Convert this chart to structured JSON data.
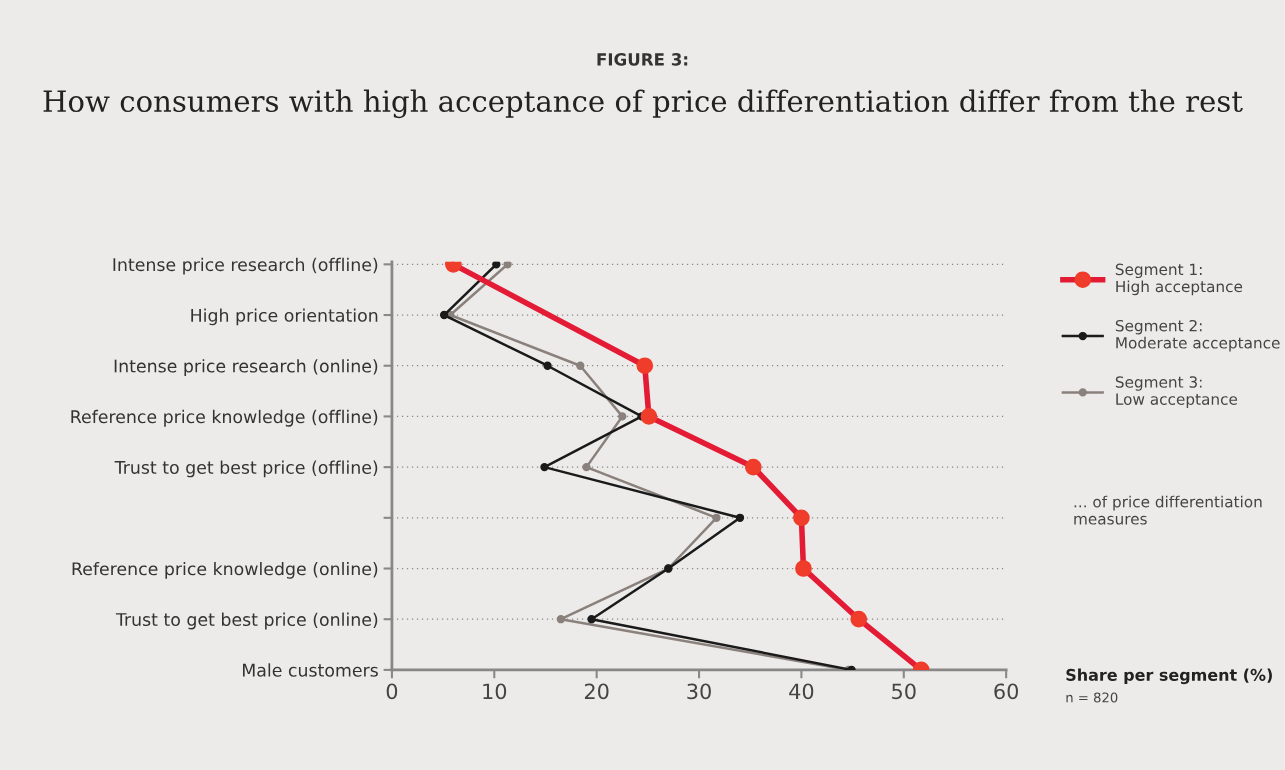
{
  "chart_data": {
    "type": "line",
    "orientation": "horizontal",
    "title": "FIGURE 3:",
    "subtitle": "How consumers with high acceptance of price differentiation differ from the rest",
    "categories": [
      "Intense price research (offline)",
      "High price orientation",
      "Intense price research (online)",
      "Reference price knowledge (offline)",
      "Trust to get best price (offline)",
      null,
      "Reference price knowledge (online)",
      "Trust to get best price (online)",
      "Male customers"
    ],
    "series": [
      {
        "name": "Segment 1:\nHigh acceptance",
        "color": "#e31b35",
        "values": [
          6,
          null,
          24.7,
          25.1,
          35.3,
          40.0,
          40.2,
          45.6,
          51.7
        ]
      },
      {
        "name": "Segment 2:\nModerate acceptance",
        "color": "#1a1a1a",
        "values": [
          10.2,
          5.1,
          15.2,
          24.4,
          14.9,
          34.0,
          27.0,
          19.5,
          44.9
        ]
      },
      {
        "name": "Segment 3:\nLow acceptance",
        "color": "#8a817c",
        "values": [
          11.3,
          5.7,
          18.4,
          22.5,
          19.0,
          31.7,
          27.0,
          16.5,
          44.6
        ]
      }
    ],
    "xlabel": "Share per segment (%)",
    "xlim": [
      0,
      60
    ],
    "xticks": [
      0,
      10,
      20,
      30,
      40,
      50,
      60
    ],
    "grid": "y",
    "legend": "right",
    "marker": "circle",
    "line_style": "solid",
    "annotations": [
      "... of price differentiation measures",
      "n = 820"
    ]
  }
}
